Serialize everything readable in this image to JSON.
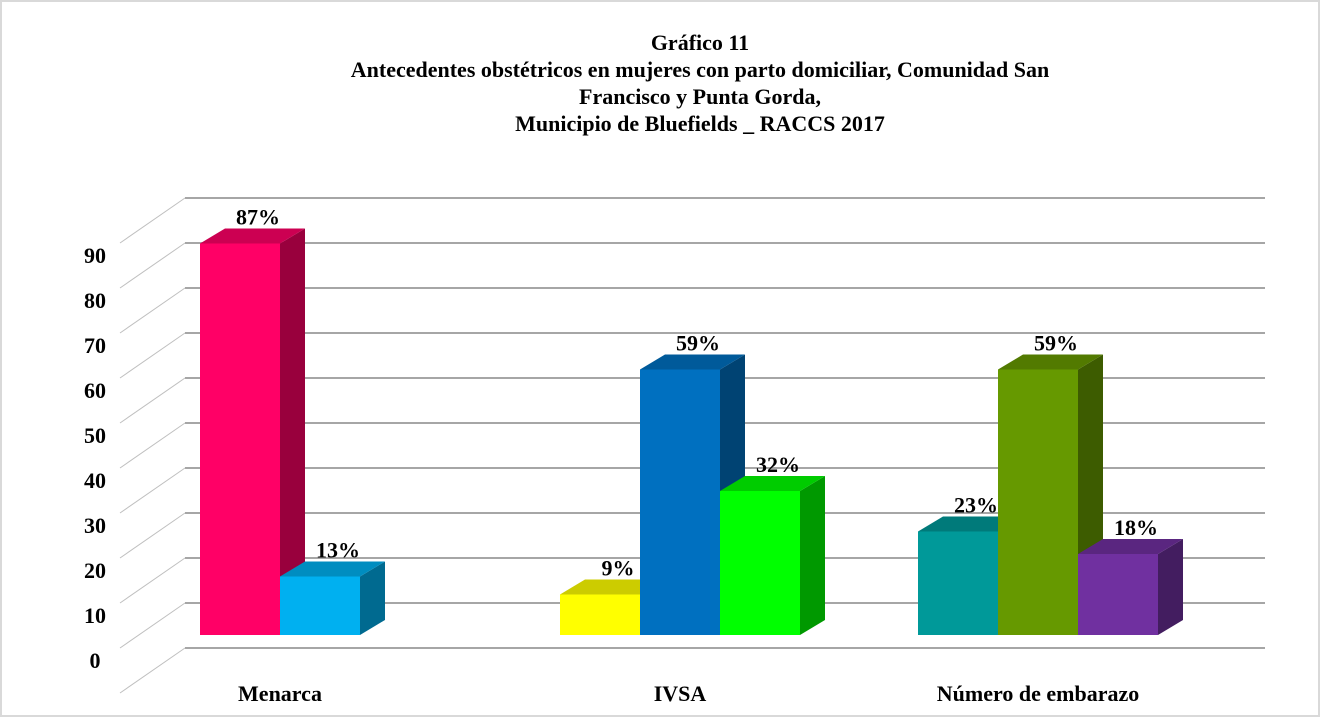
{
  "chart_data": {
    "type": "bar3d",
    "title": [
      "Gráfico 11",
      "Antecedentes obstétricos en mujeres con parto domiciliar, Comunidad San",
      "Francisco y Punta Gorda,",
      "Municipio de Bluefields _ RACCS 2017"
    ],
    "categories": [
      "Menarca",
      "IVSA",
      "Número de embarazo"
    ],
    "groups": [
      {
        "values": [
          87,
          13
        ],
        "value_labels": [
          "87%",
          "13%"
        ],
        "colors": [
          "#ff0066",
          "#00b0f0"
        ]
      },
      {
        "values": [
          9,
          59,
          32
        ],
        "value_labels": [
          "9%",
          "59%",
          "32%"
        ],
        "colors": [
          "#ffff00",
          "#0070c0",
          "#00ff00"
        ]
      },
      {
        "values": [
          23,
          59,
          18
        ],
        "value_labels": [
          "23%",
          "59%",
          "18%"
        ],
        "colors": [
          "#009999",
          "#669900",
          "#7030a0"
        ]
      }
    ],
    "ylim": [
      0,
      100
    ],
    "yticks": [
      0,
      10,
      20,
      30,
      40,
      50,
      60,
      70,
      80,
      90
    ],
    "grid": true
  }
}
